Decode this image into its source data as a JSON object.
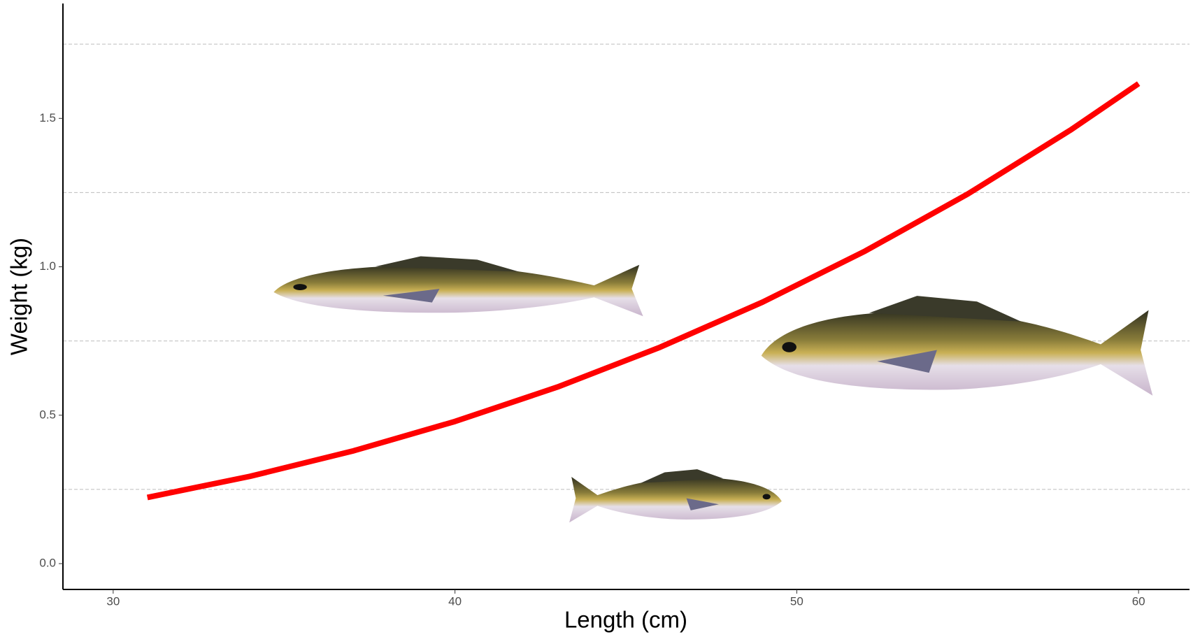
{
  "chart_data": {
    "type": "line",
    "x_label": "Length (cm)",
    "y_label": "Weight (kg)",
    "x": [
      31,
      34,
      37,
      40,
      43,
      46,
      49,
      52,
      55,
      58,
      60
    ],
    "series": [
      {
        "color": "#ff0000",
        "values": [
          0.223,
          0.294,
          0.379,
          0.479,
          0.595,
          0.729,
          0.881,
          1.053,
          1.245,
          1.46,
          1.617
        ]
      }
    ],
    "xlim": [
      28.53,
      61.49
    ],
    "ylim": [
      -0.087,
      1.887
    ],
    "xticks": [
      30,
      40,
      50,
      60
    ],
    "yticks": [
      {
        "value": 0,
        "label": "0.0"
      },
      0.5,
      {
        "value": 1,
        "label": "1.0"
      },
      1.5
    ],
    "minor_gridlines": [
      0.25,
      0.75,
      1.25,
      1.75
    ],
    "grid_color": "#bdbdbd"
  }
}
